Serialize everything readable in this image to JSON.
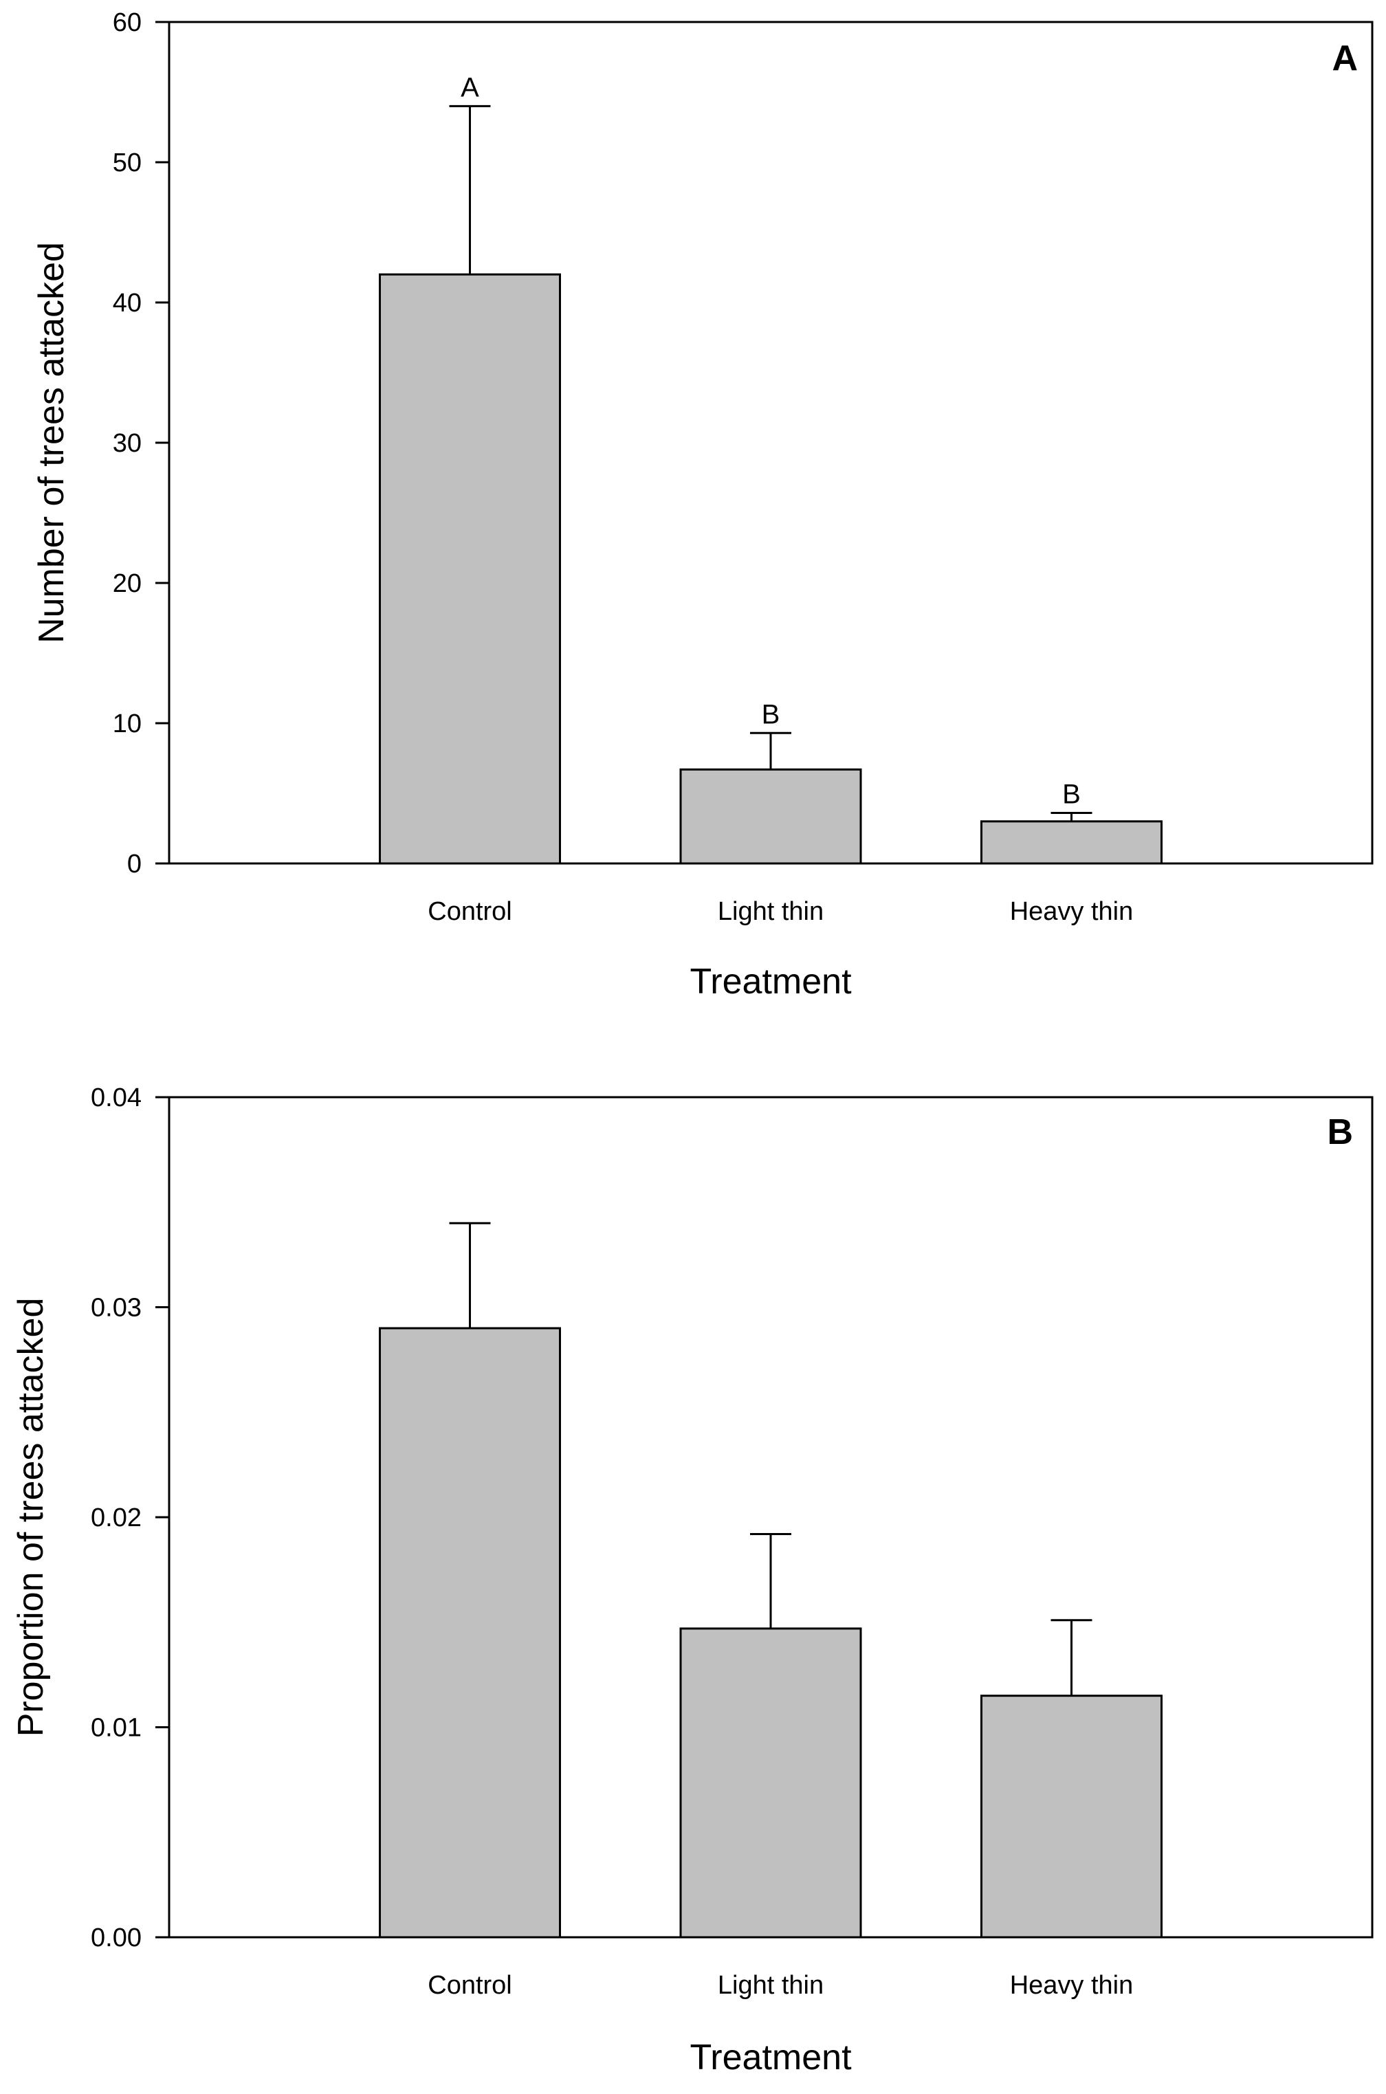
{
  "chart_data": [
    {
      "type": "bar",
      "panel": "A",
      "categories": [
        "Control",
        "Light thin",
        "Heavy thin"
      ],
      "values": [
        42,
        6.7,
        3
      ],
      "errors": [
        12,
        2.6,
        0.6
      ],
      "significance": [
        "A",
        "B",
        "B"
      ],
      "xlabel": "Treatment",
      "ylabel": "Number of trees attacked",
      "ylim": [
        0,
        60
      ],
      "yticks": [
        0,
        10,
        20,
        30,
        40,
        50,
        60
      ],
      "ytick_labels": [
        "0",
        "10",
        "20",
        "30",
        "40",
        "50",
        "60"
      ],
      "grid": false,
      "bar_color": "#c0c0c0"
    },
    {
      "type": "bar",
      "panel": "B",
      "categories": [
        "Control",
        "Light thin",
        "Heavy thin"
      ],
      "values": [
        0.029,
        0.0147,
        0.0115
      ],
      "errors": [
        0.005,
        0.0045,
        0.0036
      ],
      "significance": [],
      "xlabel": "Treatment",
      "ylabel": "Proportion of trees attacked",
      "ylim": [
        0,
        0.04
      ],
      "yticks": [
        0,
        0.01,
        0.02,
        0.03,
        0.04
      ],
      "ytick_labels": [
        "0.00",
        "0.01",
        "0.02",
        "0.03",
        "0.04"
      ],
      "grid": false,
      "bar_color": "#c0c0c0"
    }
  ]
}
